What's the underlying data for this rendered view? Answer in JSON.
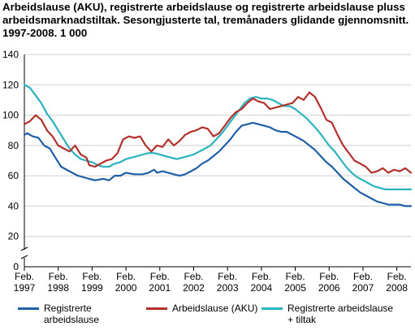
{
  "chart_data": {
    "type": "line",
    "title": "Arbeidslause (AKU), registrerte arbeidslause og registrerte arbeidslause pluss arbeidsmarknadstiltak. Sesongjusterte tal, tremånaders glidande gjennomsnitt. 1997-2008. 1 000",
    "xlabel": "",
    "ylabel": "",
    "ylim": [
      0,
      140
    ],
    "yticks": [
      0,
      20,
      40,
      60,
      80,
      100,
      120,
      140
    ],
    "xlim": [
      "1997-02",
      "2008-07"
    ],
    "xticks": [
      {
        "top": "Feb.",
        "bottom": "1997",
        "date": "1997-02"
      },
      {
        "top": "Feb.",
        "bottom": "1998",
        "date": "1998-02"
      },
      {
        "top": "Feb.",
        "bottom": "1999",
        "date": "1999-02"
      },
      {
        "top": "Feb.",
        "bottom": "2000",
        "date": "2000-02"
      },
      {
        "top": "Feb.",
        "bottom": "2001",
        "date": "2001-02"
      },
      {
        "top": "Feb.",
        "bottom": "2002",
        "date": "2002-02"
      },
      {
        "top": "Feb.",
        "bottom": "2003",
        "date": "2003-02"
      },
      {
        "top": "Feb.",
        "bottom": "2004",
        "date": "2004-02"
      },
      {
        "top": "Feb.",
        "bottom": "2005",
        "date": "2005-02"
      },
      {
        "top": "Feb.",
        "bottom": "2006",
        "date": "2006-02"
      },
      {
        "top": "Feb.",
        "bottom": "2007",
        "date": "2007-02"
      },
      {
        "top": "Feb.",
        "bottom": "2008",
        "date": "2008-02"
      }
    ],
    "grid": true,
    "axis_break": true,
    "legend_position": "bottom",
    "series": [
      {
        "name": "Registrerte\narbeidslause",
        "color": "#1f5fa8",
        "points": [
          [
            "1997-02",
            87
          ],
          [
            "1997-03",
            88
          ],
          [
            "1997-05",
            86
          ],
          [
            "1997-07",
            85
          ],
          [
            "1997-09",
            80
          ],
          [
            "1997-11",
            78
          ],
          [
            "1998-01",
            72
          ],
          [
            "1998-03",
            66
          ],
          [
            "1998-06",
            63
          ],
          [
            "1998-09",
            60
          ],
          [
            "1998-11",
            59
          ],
          [
            "1999-01",
            58
          ],
          [
            "1999-03",
            57
          ],
          [
            "1999-06",
            58
          ],
          [
            "1999-08",
            57
          ],
          [
            "1999-10",
            60
          ],
          [
            "1999-12",
            60
          ],
          [
            "2000-02",
            62
          ],
          [
            "2000-05",
            61
          ],
          [
            "2000-08",
            61
          ],
          [
            "2000-10",
            62
          ],
          [
            "2000-12",
            64
          ],
          [
            "2001-01",
            62
          ],
          [
            "2001-03",
            63
          ],
          [
            "2001-05",
            62
          ],
          [
            "2001-07",
            61
          ],
          [
            "2001-09",
            60
          ],
          [
            "2001-11",
            61
          ],
          [
            "2002-01",
            63
          ],
          [
            "2002-03",
            65
          ],
          [
            "2002-05",
            68
          ],
          [
            "2002-07",
            70
          ],
          [
            "2002-09",
            73
          ],
          [
            "2002-11",
            76
          ],
          [
            "2003-01",
            80
          ],
          [
            "2003-03",
            84
          ],
          [
            "2003-05",
            89
          ],
          [
            "2003-07",
            93
          ],
          [
            "2003-09",
            94
          ],
          [
            "2003-11",
            95
          ],
          [
            "2004-01",
            94
          ],
          [
            "2004-03",
            93
          ],
          [
            "2004-05",
            92
          ],
          [
            "2004-07",
            90
          ],
          [
            "2004-09",
            89
          ],
          [
            "2004-11",
            89
          ],
          [
            "2005-01",
            87
          ],
          [
            "2005-03",
            85
          ],
          [
            "2005-05",
            83
          ],
          [
            "2005-07",
            80
          ],
          [
            "2005-09",
            77
          ],
          [
            "2005-11",
            73
          ],
          [
            "2006-01",
            69
          ],
          [
            "2006-03",
            66
          ],
          [
            "2006-05",
            62
          ],
          [
            "2006-07",
            58
          ],
          [
            "2006-09",
            55
          ],
          [
            "2006-11",
            52
          ],
          [
            "2007-01",
            49
          ],
          [
            "2007-03",
            47
          ],
          [
            "2007-05",
            45
          ],
          [
            "2007-07",
            43
          ],
          [
            "2007-09",
            42
          ],
          [
            "2007-11",
            41
          ],
          [
            "2008-01",
            41
          ],
          [
            "2008-03",
            41
          ],
          [
            "2008-05",
            40
          ],
          [
            "2008-07",
            40
          ]
        ]
      },
      {
        "name": "Arbeidslause (AKU)",
        "color": "#b3312c",
        "points": [
          [
            "1997-02",
            94
          ],
          [
            "1997-04",
            96
          ],
          [
            "1997-06",
            100
          ],
          [
            "1997-08",
            97
          ],
          [
            "1997-10",
            90
          ],
          [
            "1997-12",
            86
          ],
          [
            "1998-02",
            80
          ],
          [
            "1998-04",
            78
          ],
          [
            "1998-06",
            76
          ],
          [
            "1998-08",
            80
          ],
          [
            "1998-10",
            74
          ],
          [
            "1998-12",
            72
          ],
          [
            "1999-01",
            67
          ],
          [
            "1999-03",
            66
          ],
          [
            "1999-05",
            68
          ],
          [
            "1999-07",
            70
          ],
          [
            "1999-09",
            71
          ],
          [
            "1999-11",
            75
          ],
          [
            "2000-01",
            84
          ],
          [
            "2000-03",
            86
          ],
          [
            "2000-05",
            85
          ],
          [
            "2000-07",
            86
          ],
          [
            "2000-09",
            80
          ],
          [
            "2000-11",
            76
          ],
          [
            "2001-01",
            80
          ],
          [
            "2001-03",
            79
          ],
          [
            "2001-05",
            84
          ],
          [
            "2001-07",
            80
          ],
          [
            "2001-09",
            83
          ],
          [
            "2001-11",
            87
          ],
          [
            "2002-01",
            89
          ],
          [
            "2002-03",
            90
          ],
          [
            "2002-05",
            92
          ],
          [
            "2002-07",
            91
          ],
          [
            "2002-09",
            86
          ],
          [
            "2002-11",
            88
          ],
          [
            "2003-01",
            93
          ],
          [
            "2003-03",
            98
          ],
          [
            "2003-05",
            102
          ],
          [
            "2003-07",
            104
          ],
          [
            "2003-09",
            108
          ],
          [
            "2003-11",
            111
          ],
          [
            "2004-01",
            109
          ],
          [
            "2004-03",
            108
          ],
          [
            "2004-05",
            104
          ],
          [
            "2004-07",
            105
          ],
          [
            "2004-09",
            106
          ],
          [
            "2004-11",
            107
          ],
          [
            "2005-01",
            108
          ],
          [
            "2005-03",
            112
          ],
          [
            "2005-05",
            110
          ],
          [
            "2005-07",
            115
          ],
          [
            "2005-09",
            112
          ],
          [
            "2005-11",
            105
          ],
          [
            "2006-01",
            97
          ],
          [
            "2006-03",
            95
          ],
          [
            "2006-05",
            87
          ],
          [
            "2006-07",
            80
          ],
          [
            "2006-09",
            75
          ],
          [
            "2006-11",
            70
          ],
          [
            "2007-01",
            68
          ],
          [
            "2007-03",
            66
          ],
          [
            "2007-05",
            62
          ],
          [
            "2007-07",
            63
          ],
          [
            "2007-09",
            65
          ],
          [
            "2007-11",
            62
          ],
          [
            "2008-01",
            64
          ],
          [
            "2008-03",
            63
          ],
          [
            "2008-05",
            65
          ],
          [
            "2008-07",
            62
          ]
        ]
      },
      {
        "name": "Registrerte arbeidslause\n+ tiltak",
        "color": "#2ab3bf",
        "points": [
          [
            "1997-02",
            120
          ],
          [
            "1997-04",
            118
          ],
          [
            "1997-06",
            113
          ],
          [
            "1997-08",
            108
          ],
          [
            "1997-10",
            101
          ],
          [
            "1997-12",
            96
          ],
          [
            "1998-02",
            90
          ],
          [
            "1998-04",
            84
          ],
          [
            "1998-06",
            78
          ],
          [
            "1998-08",
            74
          ],
          [
            "1998-10",
            71
          ],
          [
            "1998-12",
            70
          ],
          [
            "1999-02",
            69
          ],
          [
            "1999-04",
            67
          ],
          [
            "1999-06",
            66
          ],
          [
            "1999-08",
            66
          ],
          [
            "1999-10",
            68
          ],
          [
            "1999-12",
            69
          ],
          [
            "2000-02",
            71
          ],
          [
            "2000-04",
            72
          ],
          [
            "2000-06",
            73
          ],
          [
            "2000-08",
            74
          ],
          [
            "2000-10",
            75
          ],
          [
            "2000-12",
            75
          ],
          [
            "2001-02",
            74
          ],
          [
            "2001-04",
            73
          ],
          [
            "2001-06",
            72
          ],
          [
            "2001-08",
            71
          ],
          [
            "2001-10",
            72
          ],
          [
            "2001-12",
            73
          ],
          [
            "2002-02",
            74
          ],
          [
            "2002-04",
            76
          ],
          [
            "2002-06",
            78
          ],
          [
            "2002-08",
            80
          ],
          [
            "2002-10",
            84
          ],
          [
            "2002-12",
            88
          ],
          [
            "2003-02",
            93
          ],
          [
            "2003-04",
            98
          ],
          [
            "2003-06",
            103
          ],
          [
            "2003-08",
            108
          ],
          [
            "2003-10",
            111
          ],
          [
            "2003-12",
            112
          ],
          [
            "2004-02",
            111
          ],
          [
            "2004-04",
            111
          ],
          [
            "2004-06",
            110
          ],
          [
            "2004-08",
            108
          ],
          [
            "2004-10",
            106
          ],
          [
            "2004-12",
            106
          ],
          [
            "2005-02",
            104
          ],
          [
            "2005-04",
            101
          ],
          [
            "2005-06",
            98
          ],
          [
            "2005-08",
            94
          ],
          [
            "2005-10",
            90
          ],
          [
            "2005-12",
            85
          ],
          [
            "2006-02",
            80
          ],
          [
            "2006-04",
            76
          ],
          [
            "2006-06",
            71
          ],
          [
            "2006-08",
            66
          ],
          [
            "2006-10",
            62
          ],
          [
            "2006-12",
            59
          ],
          [
            "2007-02",
            57
          ],
          [
            "2007-04",
            55
          ],
          [
            "2007-06",
            53
          ],
          [
            "2007-08",
            52
          ],
          [
            "2007-10",
            51
          ],
          [
            "2007-12",
            51
          ],
          [
            "2008-02",
            51
          ],
          [
            "2008-04",
            51
          ],
          [
            "2008-06",
            51
          ],
          [
            "2008-07",
            51
          ]
        ]
      }
    ]
  }
}
